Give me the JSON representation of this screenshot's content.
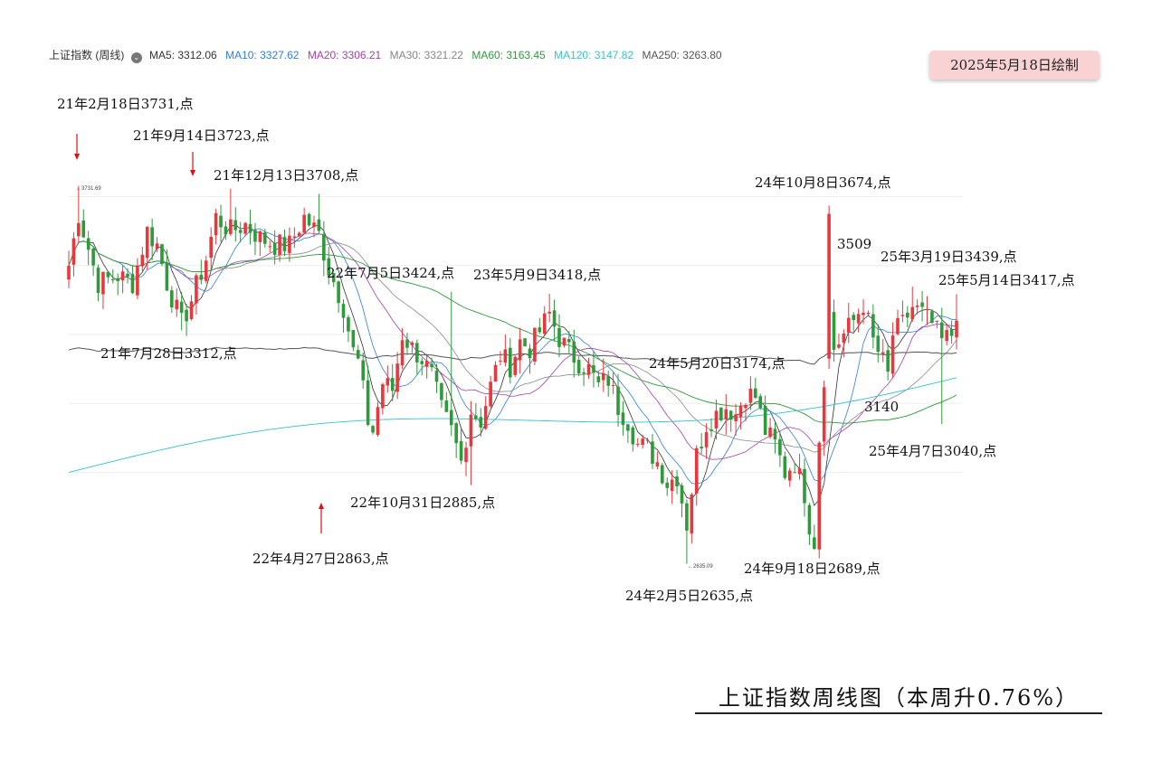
{
  "legend": {
    "title": "上证指数 (周线)",
    "items": [
      {
        "label": "MA5: 3312.06",
        "color": "#333333"
      },
      {
        "label": "MA10: 3327.62",
        "color": "#2f7ed8"
      },
      {
        "label": "MA20: 3306.21",
        "color": "#a63ea6"
      },
      {
        "label": "MA30: 3321.22",
        "color": "#888888"
      },
      {
        "label": "MA60: 3163.45",
        "color": "#2e9a3a"
      },
      {
        "label": "MA120: 3147.82",
        "color": "#33c3cc"
      },
      {
        "label": "MA250: 3263.80",
        "color": "#555555"
      }
    ]
  },
  "badge": "2025年5月18日绘制",
  "footer": "上证指数周线图（本周升0.76%）",
  "annotations": [
    "21年2月18日3731,点",
    "21年9月14日3723,点",
    "21年12月13日3708,点",
    "21年7月28日3312,点",
    "22年7月5日3424,点",
    "23年5月9日3418,点",
    "22年10月31日2885,点",
    "22年4月27日2863,点",
    "24年5月20日3174,点",
    "24年2月5日2635,点",
    "24年9月18日2689,点",
    "24年10月8日3674,点",
    "3509",
    "25年3月19日3439,点",
    "25年5月14日3417,点",
    "3140",
    "25年4月7日3040,点"
  ],
  "chart_data": {
    "type": "candlestick",
    "title": "上证指数周线图（本周升0.76%）",
    "data_labels": [
      "3731.69",
      "2635.09"
    ],
    "colors": {
      "up": "#e8383d",
      "down": "#2e9a3a"
    },
    "ylim": [
      2550,
      3800
    ],
    "key_points": [
      {
        "x": "21年2月18日",
        "y": 3731
      },
      {
        "x": "21年7月28日",
        "y": 3312
      },
      {
        "x": "21年9月14日",
        "y": 3723
      },
      {
        "x": "21年12月13日",
        "y": 3708
      },
      {
        "x": "22年4月27日",
        "y": 2863
      },
      {
        "x": "22年7月5日",
        "y": 3424
      },
      {
        "x": "22年10月31日",
        "y": 2885
      },
      {
        "x": "23年5月9日",
        "y": 3418
      },
      {
        "x": "24年2月5日",
        "y": 2635
      },
      {
        "x": "24年5月20日",
        "y": 3174
      },
      {
        "x": "24年9月18日",
        "y": 2689
      },
      {
        "x": "24年10月8日",
        "y": 3674
      },
      {
        "x": "25年3月19日",
        "y": 3439
      },
      {
        "x": "25年4月7日",
        "y": 3040
      },
      {
        "x": "25年5月14日",
        "y": 3417
      }
    ],
    "close_path": [
      [
        0,
        3500
      ],
      [
        2,
        3650
      ],
      [
        3,
        3600
      ],
      [
        6,
        3450
      ],
      [
        10,
        3470
      ],
      [
        13,
        3450
      ],
      [
        16,
        3600
      ],
      [
        18,
        3560
      ],
      [
        20,
        3450
      ],
      [
        23,
        3330
      ],
      [
        25,
        3400
      ],
      [
        28,
        3520
      ],
      [
        30,
        3640
      ],
      [
        33,
        3600
      ],
      [
        36,
        3620
      ],
      [
        39,
        3580
      ],
      [
        42,
        3560
      ],
      [
        45,
        3560
      ],
      [
        48,
        3640
      ],
      [
        51,
        3590
      ],
      [
        53,
        3490
      ],
      [
        55,
        3420
      ],
      [
        56,
        3380
      ],
      [
        58,
        3250
      ],
      [
        59,
        3220
      ],
      [
        61,
        3050
      ],
      [
        62,
        3020
      ],
      [
        64,
        3160
      ],
      [
        66,
        3140
      ],
      [
        68,
        3300
      ],
      [
        70,
        3260
      ],
      [
        72,
        3230
      ],
      [
        74,
        3180
      ],
      [
        76,
        3080
      ],
      [
        78,
        3020
      ],
      [
        80,
        2930
      ],
      [
        82,
        3080
      ],
      [
        84,
        3050
      ],
      [
        86,
        3150
      ],
      [
        88,
        3240
      ],
      [
        90,
        3210
      ],
      [
        92,
        3280
      ],
      [
        94,
        3260
      ],
      [
        96,
        3310
      ],
      [
        98,
        3360
      ],
      [
        100,
        3290
      ],
      [
        102,
        3250
      ],
      [
        104,
        3220
      ],
      [
        106,
        3200
      ],
      [
        108,
        3150
      ],
      [
        110,
        3170
      ],
      [
        112,
        3090
      ],
      [
        114,
        3050
      ],
      [
        116,
        2980
      ],
      [
        118,
        2970
      ],
      [
        120,
        2930
      ],
      [
        122,
        2870
      ],
      [
        124,
        2890
      ],
      [
        126,
        2750
      ],
      [
        128,
        2950
      ],
      [
        130,
        3040
      ],
      [
        132,
        3070
      ],
      [
        134,
        3090
      ],
      [
        136,
        3070
      ],
      [
        138,
        3130
      ],
      [
        140,
        3120
      ],
      [
        142,
        3020
      ],
      [
        144,
        2980
      ],
      [
        146,
        2900
      ],
      [
        148,
        2930
      ],
      [
        150,
        2840
      ],
      [
        151,
        2750
      ],
      [
        152,
        2700
      ],
      [
        153,
        3000
      ],
      [
        155,
        3360
      ],
      [
        156,
        3260
      ],
      [
        158,
        3300
      ],
      [
        160,
        3340
      ],
      [
        162,
        3390
      ],
      [
        164,
        3280
      ],
      [
        166,
        3220
      ],
      [
        167,
        3180
      ],
      [
        168,
        3300
      ],
      [
        170,
        3330
      ],
      [
        172,
        3380
      ],
      [
        174,
        3360
      ],
      [
        176,
        3330
      ],
      [
        178,
        3280
      ],
      [
        180,
        3300
      ],
      [
        181,
        3370
      ]
    ],
    "ma_legend": [
      "MA5: 3312.06",
      "MA10: 3327.62",
      "MA20: 3306.21",
      "MA30: 3321.22",
      "MA60: 3163.45",
      "MA120: 3147.82",
      "MA250: 3263.80"
    ]
  }
}
